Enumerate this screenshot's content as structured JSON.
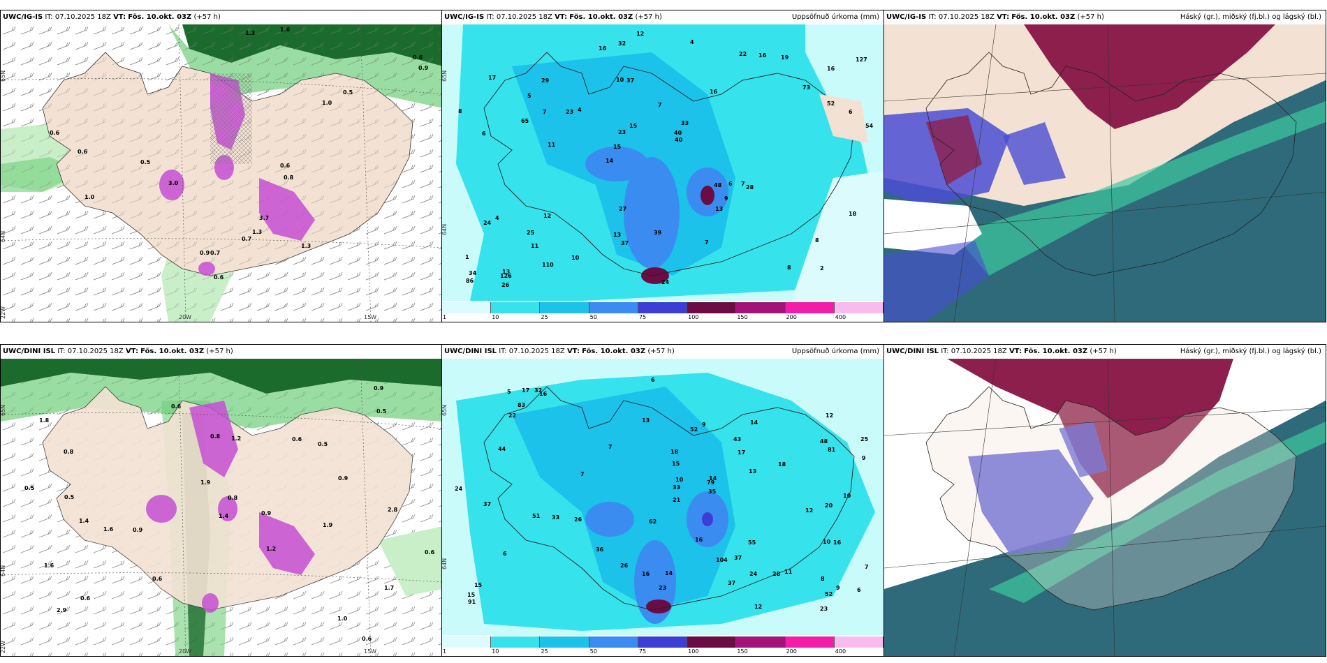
{
  "palette": {
    "land": "#f3e2d3",
    "sea": "#ffffff",
    "green_light": "#c9efc8",
    "green_mid": "#6fcf7a",
    "green_dark": "#1b6b2d",
    "magenta": "#c44fd2",
    "cyan": "#7ff2f0",
    "cyan_mid": "#16d8e0",
    "blue": "#3a8cf0",
    "maroon": "#8c1f4b",
    "teal": "#2e6a7a",
    "sea_green": "#3fc9a0"
  },
  "colorbar": {
    "ticks": [
      "1",
      "10",
      "25",
      "50",
      "75",
      "100",
      "150",
      "200",
      "400"
    ],
    "colors": [
      "#dcfbfd",
      "#36e3ec",
      "#1cc2ea",
      "#3a8cf0",
      "#3c3ed4",
      "#6b0c44",
      "#a3147a",
      "#f01ea8",
      "#f9bbee"
    ]
  },
  "panels": [
    {
      "id": "top-left",
      "source": "UWC/IG-IS",
      "it": "IT: 07.10.2025 18Z",
      "vt_label": "VT:",
      "vt": "Fös. 10.okt. 03Z",
      "lead": "(+57 h)",
      "right_title": "",
      "axis_labels": [
        "65N",
        "64N",
        "20W",
        "15W",
        "22W"
      ],
      "labels": [
        "1.6",
        "0.6",
        "0.9",
        "1.3",
        "0.5",
        "1.0",
        "0.6",
        "0.6",
        "1.0",
        "0.5",
        "0.6",
        "0.8",
        "3.0",
        "3.7",
        "1.3",
        "0.9",
        "0.7",
        "0.6",
        "1.3",
        "0.7"
      ]
    },
    {
      "id": "top-middle",
      "source": "UWC/IG-IS",
      "it": "IT: 07.10.2025 18Z",
      "vt_label": "VT:",
      "vt": "Fös. 10.okt. 03Z",
      "lead": "(+57 h)",
      "right_title": "Uppsöfnuð úrkoma (mm)",
      "axis_labels": [
        "65N",
        "64N"
      ],
      "labels": [
        "2",
        "6",
        "16",
        "14",
        "16",
        "13",
        "10",
        "7",
        "4",
        "4",
        "1",
        "11",
        "37",
        "33",
        "28",
        "17",
        "32",
        "54",
        "48",
        "52",
        "15",
        "13",
        "23",
        "29",
        "22",
        "12",
        "8",
        "8",
        "7",
        "24",
        "23",
        "65",
        "13",
        "110",
        "6",
        "40",
        "34",
        "37",
        "40",
        "24",
        "73",
        "127",
        "9",
        "7",
        "25",
        "26",
        "86",
        "39",
        "19",
        "12",
        "11",
        "8",
        "5",
        "16",
        "126",
        "4",
        "16",
        "15",
        "18",
        "27",
        "10",
        "6",
        "7"
      ]
    },
    {
      "id": "top-right",
      "source": "UWC/IG-IS",
      "it": "IT: 07.10.2025 18Z",
      "vt_label": "VT:",
      "vt": "Fös. 10.okt. 03Z",
      "lead": "(+57 h)",
      "right_title": "Háský (gr.), miðský (fj.bl.) og lágský (bl.)",
      "axis_labels": [],
      "labels": []
    },
    {
      "id": "bottom-left",
      "source": "UWC/DINI ISL",
      "it": "IT: 07.10.2025 18Z",
      "vt_label": "VT:",
      "vt": "Fös. 10.okt. 03Z",
      "lead": "(+57 h)",
      "right_title": "",
      "axis_labels": [
        "65N",
        "64N",
        "20W",
        "15W",
        "22W"
      ],
      "labels": [
        "0.6",
        "1.4",
        "1.2",
        "1.8",
        "1.7",
        "0.8",
        "0.6",
        "0.9",
        "0.5",
        "0.8",
        "0.6",
        "1.0",
        "0.6",
        "0.6",
        "0.9",
        "1.6",
        "1.9",
        "0.8",
        "0.5",
        "2.9",
        "0.9",
        "1.2",
        "0.9",
        "0.6",
        "2.8",
        "0.5",
        "1.6",
        "1.4",
        "1.9",
        "0.5"
      ]
    },
    {
      "id": "bottom-middle",
      "source": "UWC/DINI ISL",
      "it": "IT: 07.10.2025 18Z",
      "vt_label": "VT:",
      "vt": "Fös. 10.okt. 03Z",
      "lead": "(+57 h)",
      "right_title": "Uppsöfnuð úrkoma (mm)",
      "axis_labels": [
        "65N",
        "64N"
      ],
      "labels": [
        "6",
        "14",
        "10",
        "7",
        "9",
        "11",
        "15",
        "17",
        "16",
        "15",
        "16",
        "16",
        "20",
        "23",
        "5",
        "26",
        "23",
        "48",
        "52",
        "55",
        "51",
        "14",
        "7",
        "7",
        "32",
        "24",
        "28",
        "37",
        "22",
        "13",
        "16",
        "15",
        "10",
        "81",
        "91",
        "52",
        "36",
        "62",
        "83",
        "44",
        "43",
        "35",
        "33",
        "25",
        "26",
        "10",
        "12",
        "14",
        "37",
        "33",
        "79",
        "37",
        "12",
        "9",
        "13",
        "12",
        "18",
        "17",
        "24",
        "18",
        "21",
        "104",
        "6",
        "8",
        "9",
        "6"
      ]
    },
    {
      "id": "bottom-right",
      "source": "UWC/DINI ISL",
      "it": "IT: 07.10.2025 18Z",
      "vt_label": "VT:",
      "vt": "Fös. 10.okt. 03Z",
      "lead": "(+57 h)",
      "right_title": "Háský (gr.), miðský (fj.bl.) og lágský (bl.)",
      "axis_labels": [],
      "labels": []
    }
  ]
}
